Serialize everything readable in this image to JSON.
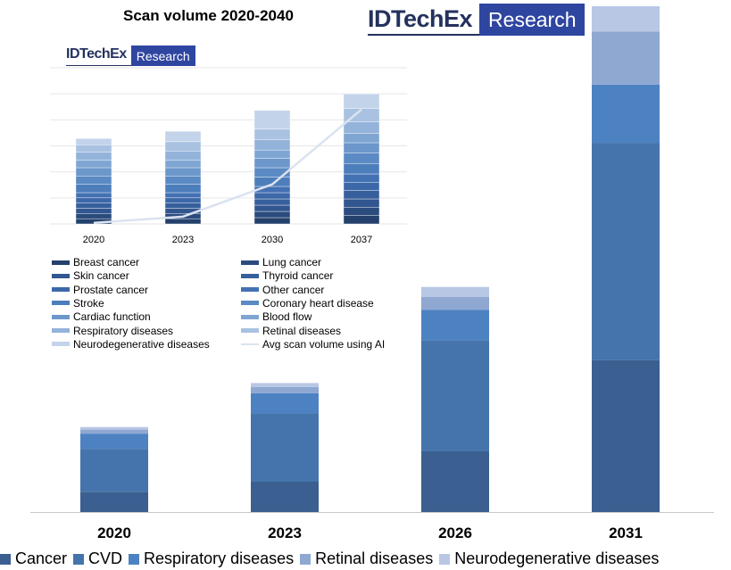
{
  "title": "Scan volume 2020-2040",
  "brand": {
    "name": "IDTechEx",
    "tag": "Research"
  },
  "colors": {
    "cancer": "#3a5f90",
    "cvd": "#4474ab",
    "respiratory": "#4d82c2",
    "retinal": "#8fa8d2",
    "neuro": "#b8c7e4",
    "baseline": "#c8c8c8",
    "line": "#dbe3f1",
    "grid": "#e6e6e6"
  },
  "chart_data": [
    {
      "type": "bar",
      "stacked": true,
      "title": "Scan volume 2020-2040",
      "categories": [
        "2020",
        "2023",
        "2026",
        "2031"
      ],
      "series": [
        {
          "name": "Cancer",
          "values": [
            4,
            6,
            12,
            30
          ]
        },
        {
          "name": "CVD",
          "values": [
            8.5,
            13.5,
            22,
            43
          ]
        },
        {
          "name": "Respiratory diseases",
          "values": [
            3,
            4,
            6,
            11.5
          ]
        },
        {
          "name": "Retinal diseases",
          "values": [
            0.8,
            1.2,
            2.5,
            10.5
          ]
        },
        {
          "name": "Neurodegenerative diseases",
          "values": [
            0.5,
            0.8,
            2,
            5
          ]
        }
      ],
      "ylim": [
        0,
        100
      ],
      "legend": "bottom"
    },
    {
      "type": "bar",
      "stacked": true,
      "categories": [
        "2020",
        "2023",
        "2030",
        "2037"
      ],
      "series": [
        {
          "name": "Breast cancer",
          "values": [
            5,
            5,
            6,
            8
          ]
        },
        {
          "name": "Lung cancer",
          "values": [
            5,
            5,
            6,
            8
          ]
        },
        {
          "name": "Skin cancer",
          "values": [
            5,
            5,
            6,
            8
          ]
        },
        {
          "name": "Thyroid cancer",
          "values": [
            5,
            5,
            6,
            8
          ]
        },
        {
          "name": "Prostate cancer",
          "values": [
            5,
            5,
            6,
            8
          ]
        },
        {
          "name": "Other cancer",
          "values": [
            5,
            5,
            6,
            8
          ]
        },
        {
          "name": "Stroke",
          "values": [
            8,
            8,
            9,
            10
          ]
        },
        {
          "name": "Coronary heart disease",
          "values": [
            8,
            8,
            9,
            10
          ]
        },
        {
          "name": "Cardiac function",
          "values": [
            8,
            8,
            9,
            10
          ]
        },
        {
          "name": "Blood flow",
          "values": [
            7,
            7,
            8,
            9
          ]
        },
        {
          "name": "Respiratory diseases",
          "values": [
            8,
            9,
            10,
            11
          ]
        },
        {
          "name": "Retinal diseases",
          "values": [
            7,
            9,
            10,
            13
          ]
        },
        {
          "name": "Neurodegenerative diseases",
          "values": [
            6,
            10,
            18,
            14
          ]
        }
      ],
      "line": {
        "name": "Avg scan volume using AI",
        "values": [
          1,
          7,
          38,
          110
        ]
      },
      "ylim": [
        0,
        150
      ],
      "grid": true,
      "legend": "bottom-left"
    }
  ]
}
